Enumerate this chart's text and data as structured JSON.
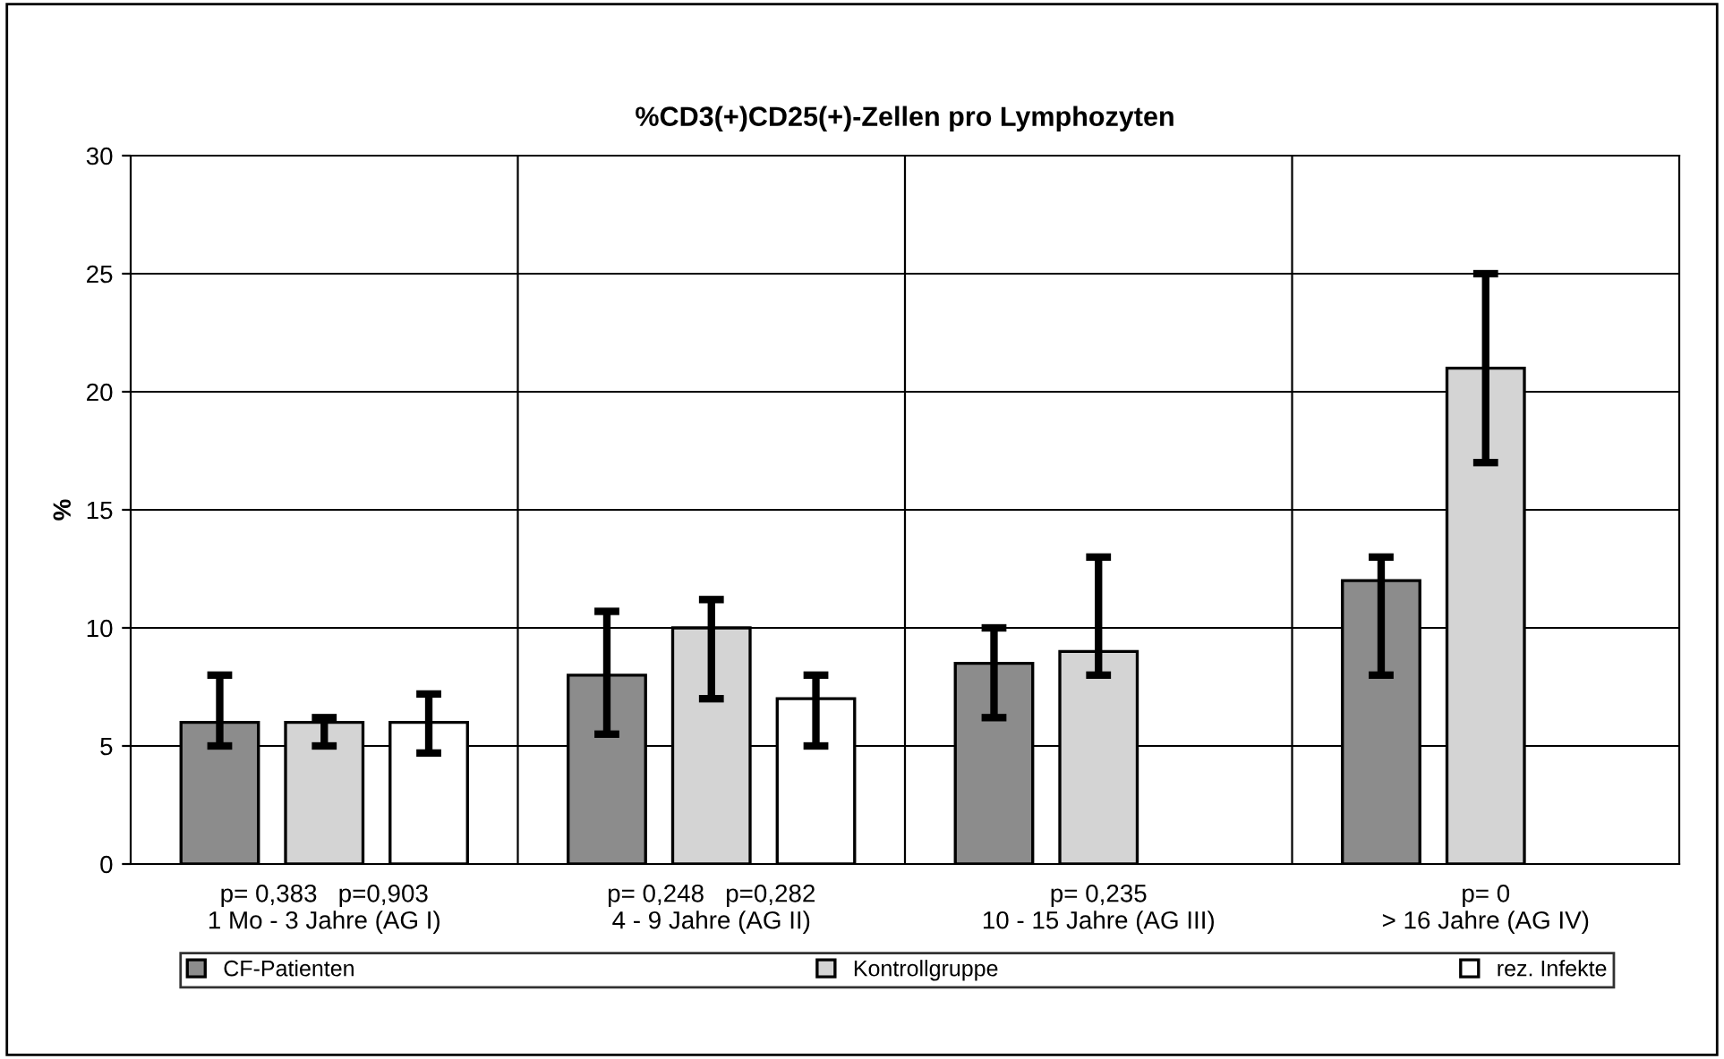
{
  "chart_data": {
    "type": "bar",
    "title": "%CD3(+)CD25(+)-Zellen pro Lymphozyten",
    "ylabel": "%",
    "categories": [
      "p= 0,383   p=0,903\n1 Mo - 3 Jahre (AG I)",
      "p= 0,248   p=0,282\n4 - 9 Jahre (AG II)",
      "p= 0,235\n10 - 15 Jahre (AG III)",
      "p= 0\n> 16 Jahre (AG IV)"
    ],
    "series": [
      {
        "name": "CF-Patienten",
        "color": "#8c8c8c",
        "values": [
          6,
          8,
          8.5,
          12
        ],
        "errors": [
          [
            5,
            8
          ],
          [
            5.5,
            10.7
          ],
          [
            6.2,
            10
          ],
          [
            8,
            13
          ]
        ]
      },
      {
        "name": "Kontrollgruppe",
        "color": "#d4d4d4",
        "values": [
          6,
          10,
          9,
          21
        ],
        "errors": [
          [
            5,
            6.2
          ],
          [
            7,
            11.2
          ],
          [
            8,
            13
          ],
          [
            17,
            25
          ]
        ]
      },
      {
        "name": "rez. Infekte",
        "color": "#ffffff",
        "values": [
          6,
          7,
          null,
          null
        ],
        "errors": [
          [
            4.7,
            7.2
          ],
          [
            5,
            8
          ],
          null,
          null
        ]
      }
    ],
    "ylim": [
      0,
      30
    ],
    "yticks": [
      0,
      5,
      10,
      15,
      20,
      25,
      30
    ],
    "grid": true,
    "legend": "bottom"
  }
}
